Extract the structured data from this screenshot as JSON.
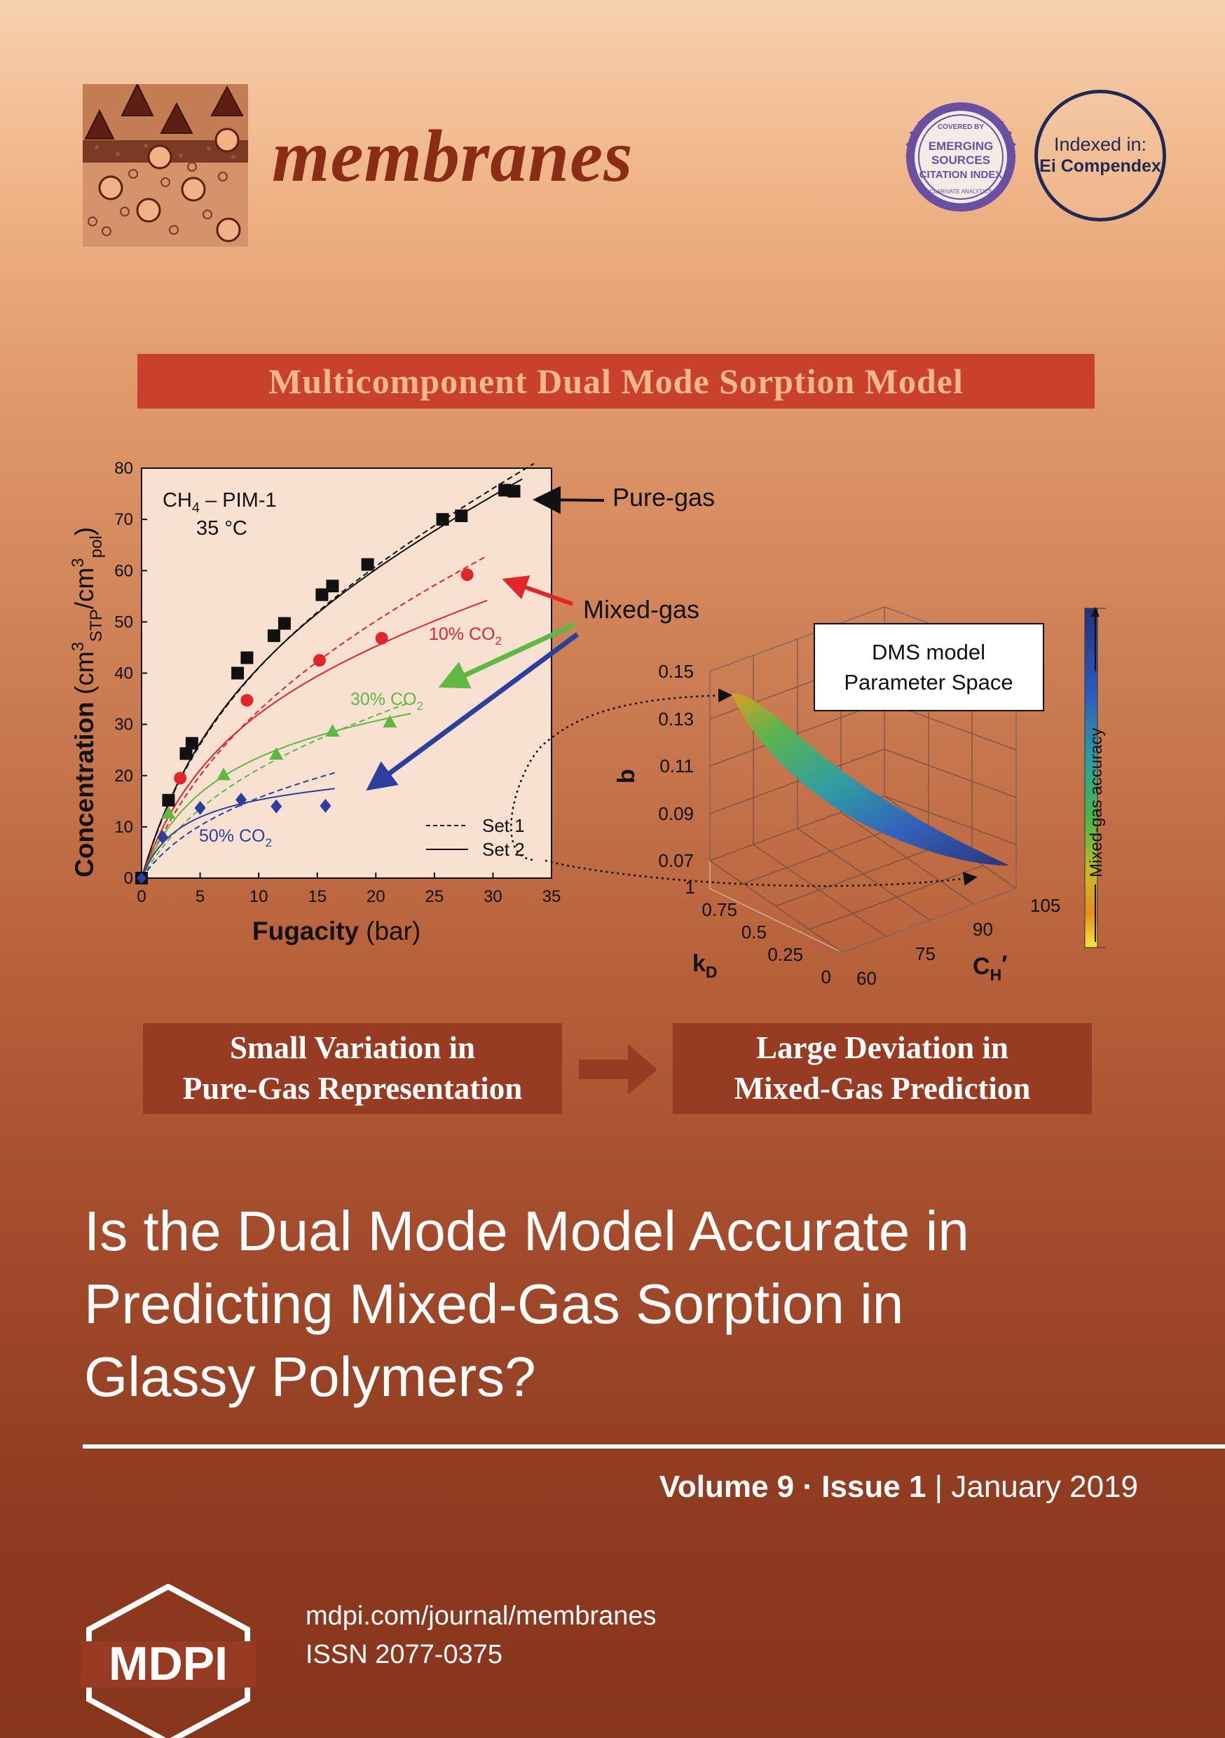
{
  "journal": {
    "name": "membranes"
  },
  "badges": {
    "esci": {
      "covered_by": "COVERED BY",
      "line1": "EMERGING",
      "line2": "SOURCES",
      "line3": "CITATION INDEX",
      "bottom": "CLARIVATE ANALYTICS"
    },
    "ei": {
      "line1": "Indexed in:",
      "line2": "Ei Compendex"
    }
  },
  "banner": {
    "title": "Multicomponent Dual Mode Sorption Model"
  },
  "figure": {
    "chart_data": [
      {
        "type": "scatter",
        "title": "",
        "annotation_line1": "PIM-1",
        "annotation_temp": "35 °C",
        "xlabel_main": "Fugacity",
        "xlabel_unit": "(bar)",
        "ylabel": "Concentration (cm³STP/cm³pol)",
        "xlim": [
          0,
          35
        ],
        "ylim": [
          0,
          80
        ],
        "xticks": [
          "0",
          "5",
          "10",
          "15",
          "20",
          "25",
          "30",
          "35"
        ],
        "yticks": [
          "0",
          "10",
          "20",
          "30",
          "40",
          "50",
          "60",
          "70",
          "80"
        ],
        "legend": [
          "Set 1",
          "Set 2"
        ],
        "series": [
          {
            "name": "Pure-gas",
            "marker": "square",
            "color": "#111111",
            "x": [
              0,
              2.3,
              3.8,
              4.3,
              8.2,
              9.0,
              11.3,
              12.2,
              15.4,
              16.3,
              19.3,
              25.7,
              27.3,
              31.0,
              31.8
            ],
            "y": [
              0,
              15.2,
              24.3,
              26.3,
              40.0,
              43.0,
              47.3,
              49.7,
              55.3,
              57.0,
              61.2,
              70.0,
              70.7,
              75.7,
              75.5
            ]
          },
          {
            "name": "10% CO2",
            "marker": "circle",
            "color": "#e0262a",
            "x": [
              3.3,
              9.0,
              15.2,
              20.5,
              27.8
            ],
            "y": [
              19.5,
              34.7,
              42.5,
              46.8,
              59.2
            ]
          },
          {
            "name": "30% CO2",
            "marker": "triangle",
            "color": "#5fb843",
            "x": [
              2.3,
              7.0,
              11.5,
              16.3,
              21.2
            ],
            "y": [
              12.7,
              20.2,
              24.2,
              28.7,
              30.5
            ]
          },
          {
            "name": "50% CO2",
            "marker": "diamond",
            "color": "#2d3f9e",
            "x": [
              1.8,
              5.0,
              8.5,
              11.5,
              15.7
            ],
            "y": [
              8.0,
              13.7,
              15.3,
              14.0,
              14.1
            ]
          }
        ]
      },
      {
        "type": "scatter3d",
        "title": "DMS model Parameter Space",
        "xlabel": "kD",
        "ylabel": "CH′",
        "zlabel": "b",
        "xticks": [
          "0",
          "0.25",
          "0.5",
          "0.75",
          "1"
        ],
        "yticks": [
          "60",
          "75",
          "90",
          "105"
        ],
        "zticks": [
          "0.07",
          "0.09",
          "0.11",
          "0.13",
          "0.15"
        ],
        "colorbar_label": "Mixed-gas accuracy"
      }
    ],
    "labels": {
      "ch4_prefix": "CH",
      "ch4_sub": "4",
      "sep": " – ",
      "pure_gas": "Pure-gas",
      "mixed_gas": "Mixed-gas",
      "co2_10": "10% CO",
      "co2_30": "30% CO",
      "co2_50": "50% CO",
      "co2_sub": "2",
      "set1": "Set 1",
      "set2": "Set 2",
      "y_main": "Concentration",
      "y_open": " (cm",
      "y_sup3": "3",
      "y_stp": "STP",
      "y_slash": "/cm",
      "y_pol": "pol",
      "y_close": ")",
      "kd_k": "k",
      "kd_d": "D",
      "ch_c": "C",
      "ch_h": "H",
      "ch_prime": "′",
      "b": "b",
      "dms_line1": "DMS model",
      "dms_line2": "Parameter Space"
    },
    "colors": {
      "accent": "#c9412c",
      "brand": "#8b2d14",
      "pure": "#111111",
      "co2_10": "#e0262a",
      "co2_30": "#5fb843",
      "co2_50": "#2d3f9e"
    }
  },
  "boxes": {
    "left_line1": "Small Variation in",
    "left_line2": "Pure-Gas Representation",
    "right_line1": "Large Deviation in",
    "right_line2": "Mixed-Gas Prediction"
  },
  "headline": {
    "line1": "Is the Dual Mode Model Accurate in",
    "line2": "Predicting Mixed-Gas Sorption in",
    "line3": "Glassy Polymers?"
  },
  "issue": {
    "volume": "Volume 9",
    "dot": " · ",
    "issue": "Issue 1",
    "sep": " | ",
    "date": "January 2019"
  },
  "publisher": {
    "logo_text": "MDPI",
    "url": "mdpi.com/journal/membranes",
    "issn": "ISSN 2077-0375"
  }
}
